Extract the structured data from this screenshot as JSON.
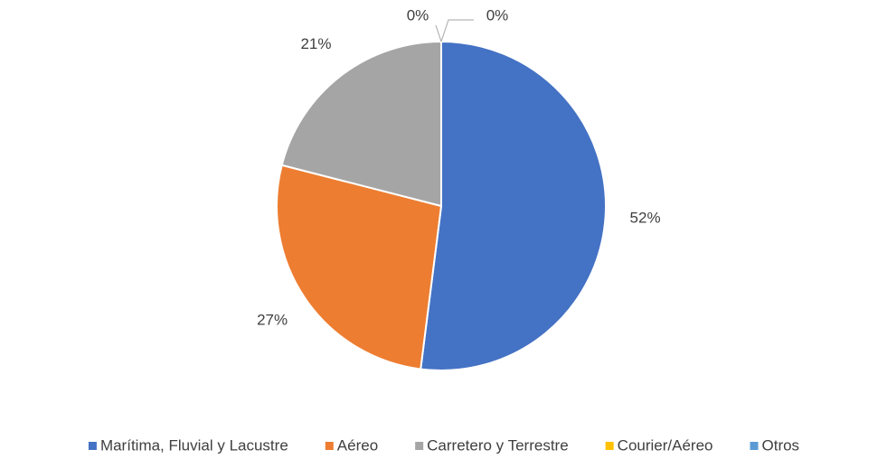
{
  "chart_data": {
    "type": "pie",
    "categories": [
      "Marítima, Fluvial y Lacustre",
      "Aéreo",
      "Carretero y Terrestre",
      "Courier/Aéreo",
      "Otros"
    ],
    "values": [
      52,
      27,
      21,
      0,
      0
    ],
    "value_labels": [
      "52%",
      "27%",
      "21%",
      "0%",
      "0%"
    ],
    "colors": [
      "#4472c4",
      "#ed7d31",
      "#a5a5a5",
      "#ffc000",
      "#5b9bd5"
    ]
  }
}
